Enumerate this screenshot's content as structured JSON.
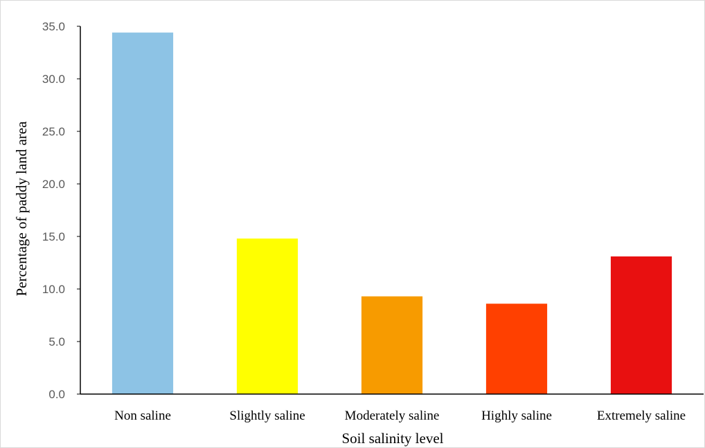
{
  "chart_data": {
    "type": "bar",
    "title": "",
    "xlabel": "Soil salinity level",
    "ylabel": "Percentage of paddy land area",
    "categories": [
      "Non saline",
      "Slightly saline",
      "Moderately saline",
      "Highly saline",
      "Extremely saline"
    ],
    "values": [
      34.4,
      14.8,
      9.3,
      8.6,
      13.1
    ],
    "colors": [
      "#8dc3e5",
      "#ffff00",
      "#f79b00",
      "#ff4000",
      "#e81010"
    ],
    "ylim": [
      0,
      35
    ],
    "yticks": [
      "0.0",
      "5.0",
      "10.0",
      "15.0",
      "20.0",
      "25.0",
      "30.0",
      "35.0"
    ],
    "grid": false,
    "legend": "none"
  }
}
